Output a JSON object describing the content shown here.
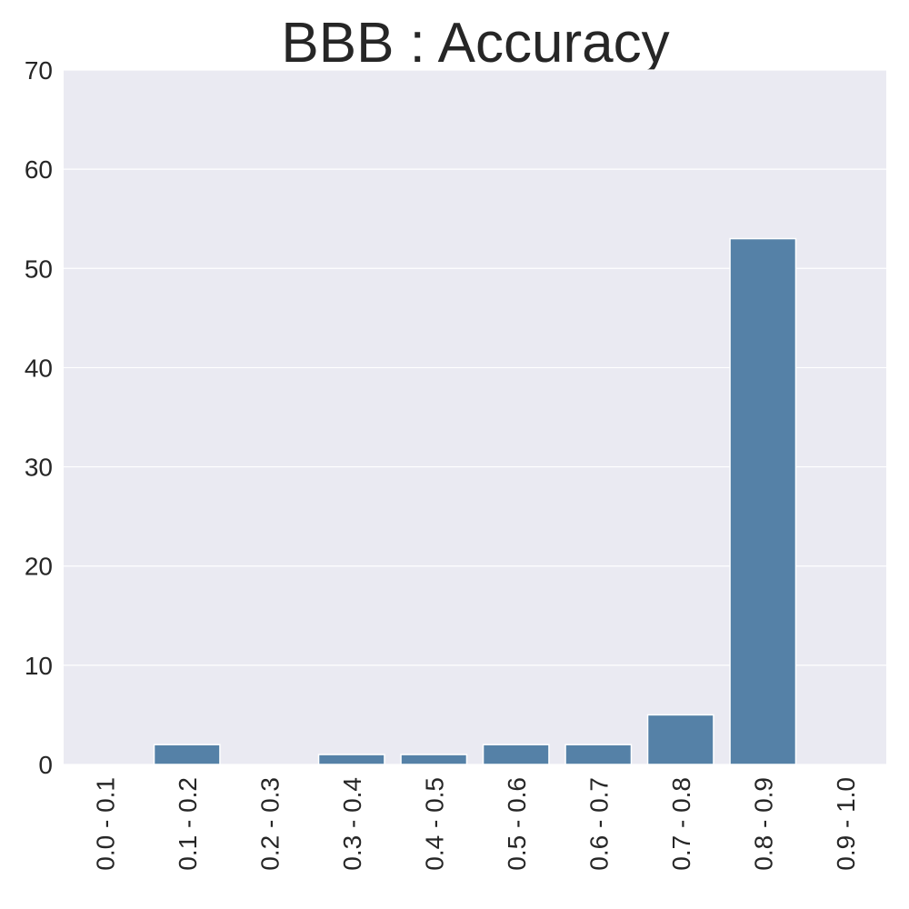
{
  "chart_data": {
    "type": "bar",
    "title": "BBB : Accuracy",
    "xlabel": "",
    "ylabel": "",
    "categories": [
      "0.0 - 0.1",
      "0.1 - 0.2",
      "0.2 - 0.3",
      "0.3 - 0.4",
      "0.4 - 0.5",
      "0.5 - 0.6",
      "0.6 - 0.7",
      "0.7 - 0.8",
      "0.8 - 0.9",
      "0.9 - 1.0"
    ],
    "values": [
      0,
      2,
      0,
      1,
      1,
      2,
      2,
      5,
      53,
      0
    ],
    "ylim": [
      0,
      70
    ],
    "yticks": [
      0,
      10,
      20,
      30,
      40,
      50,
      60,
      70
    ],
    "grid": true,
    "bar_color": "#5581a7",
    "plot_background": "#eaeaf2",
    "grid_color": "#ffffff"
  }
}
